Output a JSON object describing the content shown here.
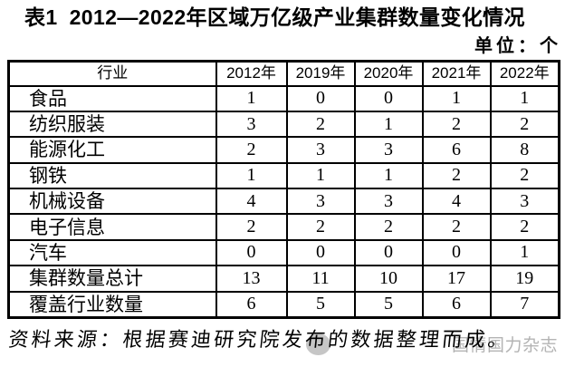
{
  "title": {
    "table_no": "表1",
    "text": "2012—2022年区域万亿级产业集群数量变化情况"
  },
  "unit_note": "单位：个",
  "chart_data": {
    "type": "table",
    "title": "表1 2012—2022年区域万亿级产业集群数量变化情况",
    "unit": "单位：个",
    "columns": [
      "行业",
      "2012年",
      "2019年",
      "2020年",
      "2021年",
      "2022年"
    ],
    "rows": [
      {
        "label": "食品",
        "values": [
          "1",
          "0",
          "0",
          "1",
          "1"
        ]
      },
      {
        "label": "纺织服装",
        "values": [
          "3",
          "2",
          "1",
          "2",
          "2"
        ]
      },
      {
        "label": "能源化工",
        "values": [
          "2",
          "3",
          "3",
          "6",
          "8"
        ]
      },
      {
        "label": "钢铁",
        "values": [
          "1",
          "1",
          "1",
          "2",
          "2"
        ]
      },
      {
        "label": "机械设备",
        "values": [
          "4",
          "3",
          "3",
          "4",
          "3"
        ]
      },
      {
        "label": "电子信息",
        "values": [
          "2",
          "2",
          "2",
          "2",
          "2"
        ]
      },
      {
        "label": "汽车",
        "values": [
          "0",
          "0",
          "0",
          "0",
          "1"
        ]
      },
      {
        "label": "集群数量总计",
        "values": [
          "13",
          "11",
          "10",
          "17",
          "19"
        ]
      },
      {
        "label": "覆盖行业数量",
        "values": [
          "6",
          "5",
          "5",
          "6",
          "7"
        ]
      }
    ]
  },
  "source_note": "资料来源：根据赛迪研究院发布的数据整理而成。",
  "watermark": "国情国力杂志"
}
